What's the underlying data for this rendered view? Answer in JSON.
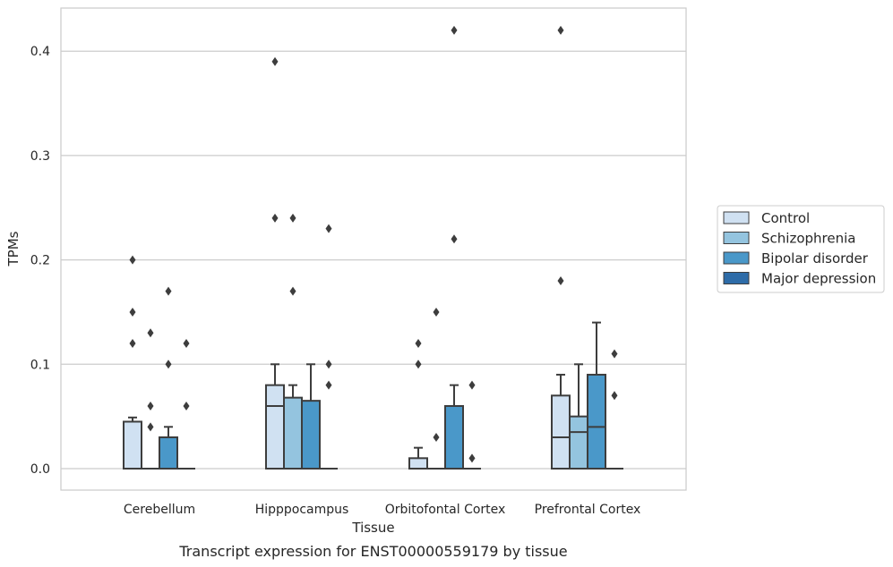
{
  "chart_data": {
    "type": "box",
    "title": "",
    "caption": "Transcript expression for ENST00000559179 by tissue",
    "xlabel": "Tissue",
    "ylabel": "TPMs",
    "ylim": [
      -0.02,
      0.44
    ],
    "yticks": [
      0.0,
      0.1,
      0.2,
      0.3,
      0.4
    ],
    "ytick_labels": [
      "0.0",
      "0.1",
      "0.2",
      "0.3",
      "0.4"
    ],
    "grid": "horizontal",
    "legend_position": "right",
    "categories": [
      "Cerebellum",
      "Hipppocampus",
      "Orbitofontal Cortex",
      "Prefrontal Cortex"
    ],
    "series": [
      {
        "name": "Control",
        "color": "#d0e1f2",
        "boxes": [
          {
            "q1": 0.0,
            "median": 0.0,
            "q3": 0.045,
            "whisker_low": 0.0,
            "whisker_high": 0.049,
            "outliers": [
              0.2,
              0.15,
              0.12
            ]
          },
          {
            "q1": 0.0,
            "median": 0.06,
            "q3": 0.08,
            "whisker_low": 0.0,
            "whisker_high": 0.1,
            "outliers": [
              0.39,
              0.24
            ]
          },
          {
            "q1": 0.0,
            "median": 0.0,
            "q3": 0.01,
            "whisker_low": 0.0,
            "whisker_high": 0.02,
            "outliers": [
              0.12,
              0.1
            ]
          },
          {
            "q1": 0.0,
            "median": 0.03,
            "q3": 0.07,
            "whisker_low": 0.0,
            "whisker_high": 0.09,
            "outliers": [
              0.42,
              0.18
            ]
          }
        ]
      },
      {
        "name": "Schizophrenia",
        "color": "#94c4df",
        "boxes": [
          {
            "q1": 0.0,
            "median": 0.0,
            "q3": 0.0,
            "whisker_low": 0.0,
            "whisker_high": 0.0,
            "outliers": [
              0.13,
              0.06,
              0.04
            ]
          },
          {
            "q1": 0.0,
            "median": 0.0,
            "q3": 0.068,
            "whisker_low": 0.0,
            "whisker_high": 0.08,
            "outliers": [
              0.24,
              0.17
            ]
          },
          {
            "q1": 0.0,
            "median": 0.0,
            "q3": 0.0,
            "whisker_low": 0.0,
            "whisker_high": 0.0,
            "outliers": [
              0.15,
              0.03
            ]
          },
          {
            "q1": 0.0,
            "median": 0.035,
            "q3": 0.05,
            "whisker_low": 0.0,
            "whisker_high": 0.1,
            "outliers": []
          }
        ]
      },
      {
        "name": "Bipolar disorder",
        "color": "#4a98c9",
        "boxes": [
          {
            "q1": 0.0,
            "median": 0.0,
            "q3": 0.03,
            "whisker_low": 0.0,
            "whisker_high": 0.04,
            "outliers": [
              0.17,
              0.1
            ]
          },
          {
            "q1": 0.0,
            "median": 0.0,
            "q3": 0.065,
            "whisker_low": 0.0,
            "whisker_high": 0.1,
            "outliers": []
          },
          {
            "q1": 0.0,
            "median": 0.0,
            "q3": 0.06,
            "whisker_low": 0.0,
            "whisker_high": 0.08,
            "outliers": [
              0.42,
              0.22
            ]
          },
          {
            "q1": 0.0,
            "median": 0.04,
            "q3": 0.09,
            "whisker_low": 0.0,
            "whisker_high": 0.14,
            "outliers": []
          }
        ]
      },
      {
        "name": "Major depression",
        "color": "#2e6ca8",
        "boxes": [
          {
            "q1": 0.0,
            "median": 0.0,
            "q3": 0.0,
            "whisker_low": 0.0,
            "whisker_high": 0.0,
            "outliers": [
              0.12,
              0.06
            ]
          },
          {
            "q1": 0.0,
            "median": 0.0,
            "q3": 0.0,
            "whisker_low": 0.0,
            "whisker_high": 0.0,
            "outliers": [
              0.23,
              0.1,
              0.08
            ]
          },
          {
            "q1": 0.0,
            "median": 0.0,
            "q3": 0.0,
            "whisker_low": 0.0,
            "whisker_high": 0.0,
            "outliers": [
              0.08,
              0.01
            ]
          },
          {
            "q1": 0.0,
            "median": 0.0,
            "q3": 0.0,
            "whisker_low": 0.0,
            "whisker_high": 0.0,
            "outliers": [
              0.11,
              0.07
            ]
          }
        ]
      }
    ]
  }
}
